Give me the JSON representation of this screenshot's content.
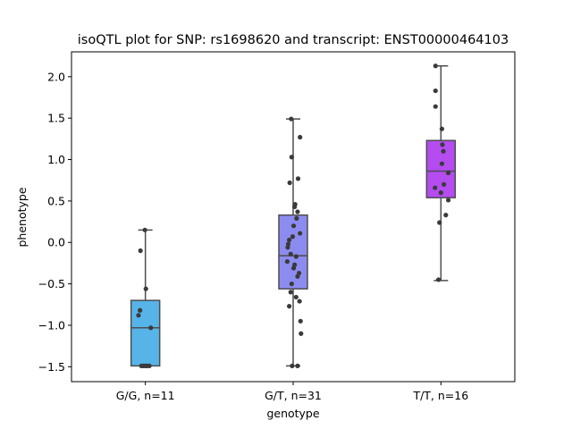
{
  "chart_data": {
    "type": "box",
    "title": "isoQTL plot for SNP: rs1698620 and transcript: ENST00000464103",
    "xlabel": "genotype",
    "ylabel": "phenotype",
    "ylim": [
      -1.68,
      2.3
    ],
    "yticks": [
      -1.5,
      -1.0,
      -0.5,
      0.0,
      0.5,
      1.0,
      1.5,
      2.0
    ],
    "ytick_labels": [
      "−1.5",
      "−1.0",
      "−0.5",
      "0.0",
      "0.5",
      "1.0",
      "1.5",
      "2.0"
    ],
    "grid": false,
    "categories": [
      "G/G, n=11",
      "G/T, n=31",
      "T/T, n=16"
    ],
    "boxes": [
      {
        "category": "G/G, n=11",
        "color": "#56b4e9",
        "whisker_low": -1.49,
        "q1": -1.49,
        "median": -1.03,
        "q3": -0.7,
        "whisker_high": 0.15
      },
      {
        "category": "G/T, n=31",
        "color": "#8c8cf0",
        "whisker_low": -1.49,
        "q1": -0.56,
        "median": -0.16,
        "q3": 0.33,
        "whisker_high": 1.49
      },
      {
        "category": "T/T, n=16",
        "color": "#b44cf0",
        "whisker_low": -0.46,
        "q1": 0.54,
        "median": 0.86,
        "q3": 1.23,
        "whisker_high": 2.13
      }
    ],
    "points": [
      {
        "category": "G/G, n=11",
        "values": [
          0.15,
          -0.1,
          -0.56,
          -0.82,
          -0.88,
          -1.03,
          -1.49,
          -1.49,
          -1.49,
          -1.49,
          -1.49
        ],
        "jitter": [
          -0.01,
          -0.1,
          0.01,
          -0.11,
          -0.14,
          0.11,
          -0.08,
          -0.04,
          0.0,
          0.03,
          0.08
        ]
      },
      {
        "category": "G/T, n=31",
        "values": [
          1.49,
          1.27,
          1.03,
          0.77,
          0.72,
          0.46,
          0.43,
          0.37,
          0.29,
          0.2,
          0.11,
          0.07,
          0.03,
          -0.02,
          -0.06,
          -0.14,
          -0.17,
          -0.23,
          -0.27,
          -0.31,
          -0.37,
          -0.41,
          -0.5,
          -0.6,
          -0.66,
          -0.71,
          -0.77,
          -0.95,
          -1.1,
          -1.49,
          -1.49
        ],
        "jitter": [
          -0.04,
          0.14,
          -0.03,
          0.1,
          -0.07,
          0.04,
          0.03,
          0.09,
          0.07,
          0.01,
          0.14,
          -0.01,
          -0.08,
          -0.1,
          -0.11,
          -0.05,
          0.06,
          -0.12,
          0.03,
          0.01,
          0.12,
          0.09,
          -0.03,
          -0.05,
          0.06,
          0.13,
          -0.08,
          0.15,
          0.16,
          -0.02,
          0.09
        ]
      },
      {
        "category": "T/T, n=16",
        "values": [
          2.13,
          1.83,
          1.64,
          1.37,
          1.18,
          1.1,
          0.95,
          0.84,
          0.7,
          0.66,
          0.6,
          0.51,
          0.33,
          0.24,
          -0.45,
          0.84
        ],
        "jitter": [
          -0.11,
          -0.11,
          -0.11,
          0.02,
          0.03,
          0.05,
          0.02,
          0.15,
          0.06,
          -0.12,
          0.0,
          0.15,
          0.1,
          -0.03,
          -0.05,
          0.15
        ]
      }
    ]
  }
}
